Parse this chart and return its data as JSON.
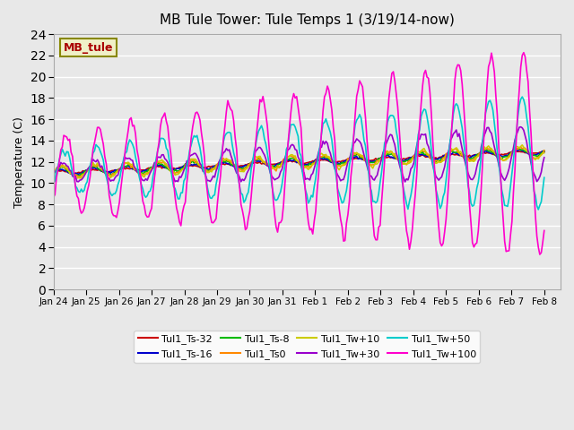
{
  "title": "MB Tule Tower: Tule Temps 1 (3/19/14-now)",
  "ylabel": "Temperature (C)",
  "ylim": [
    0,
    24
  ],
  "yticks": [
    0,
    2,
    4,
    6,
    8,
    10,
    12,
    14,
    16,
    18,
    20,
    22,
    24
  ],
  "bg_color": "#e8e8e8",
  "plot_bg_color": "#e8e8e8",
  "legend_label": "MB_tule",
  "legend_box_color": "#f0f0c8",
  "legend_border_color": "#888800",
  "legend_text_color": "#aa0000",
  "series": [
    {
      "label": "Tul1_Ts-32",
      "color": "#cc0000",
      "lw": 1.2
    },
    {
      "label": "Tul1_Ts-16",
      "color": "#0000cc",
      "lw": 1.2
    },
    {
      "label": "Tul1_Ts-8",
      "color": "#00bb00",
      "lw": 1.2
    },
    {
      "label": "Tul1_Ts0",
      "color": "#ff8800",
      "lw": 1.2
    },
    {
      "label": "Tul1_Tw+10",
      "color": "#cccc00",
      "lw": 1.2
    },
    {
      "label": "Tul1_Tw+30",
      "color": "#9900cc",
      "lw": 1.2
    },
    {
      "label": "Tul1_Tw+50",
      "color": "#00cccc",
      "lw": 1.2
    },
    {
      "label": "Tul1_Tw+100",
      "color": "#ff00cc",
      "lw": 1.2
    }
  ],
  "xtick_positions": [
    0,
    1,
    2,
    3,
    4,
    5,
    6,
    7,
    8,
    9,
    10,
    11,
    12,
    13,
    14,
    15
  ],
  "xtick_labels": [
    "Jan 24",
    "Jan 25",
    "Jan 26",
    "Jan 27",
    "Jan 28",
    "Jan 29",
    "Jan 30",
    "Jan 31",
    "Feb 1",
    "Feb 2",
    "Feb 3",
    "Feb 4",
    "Feb 5",
    "Feb 6",
    "Feb 7",
    "Feb 8"
  ],
  "n_points": 336,
  "xlim": [
    0,
    15.5
  ]
}
